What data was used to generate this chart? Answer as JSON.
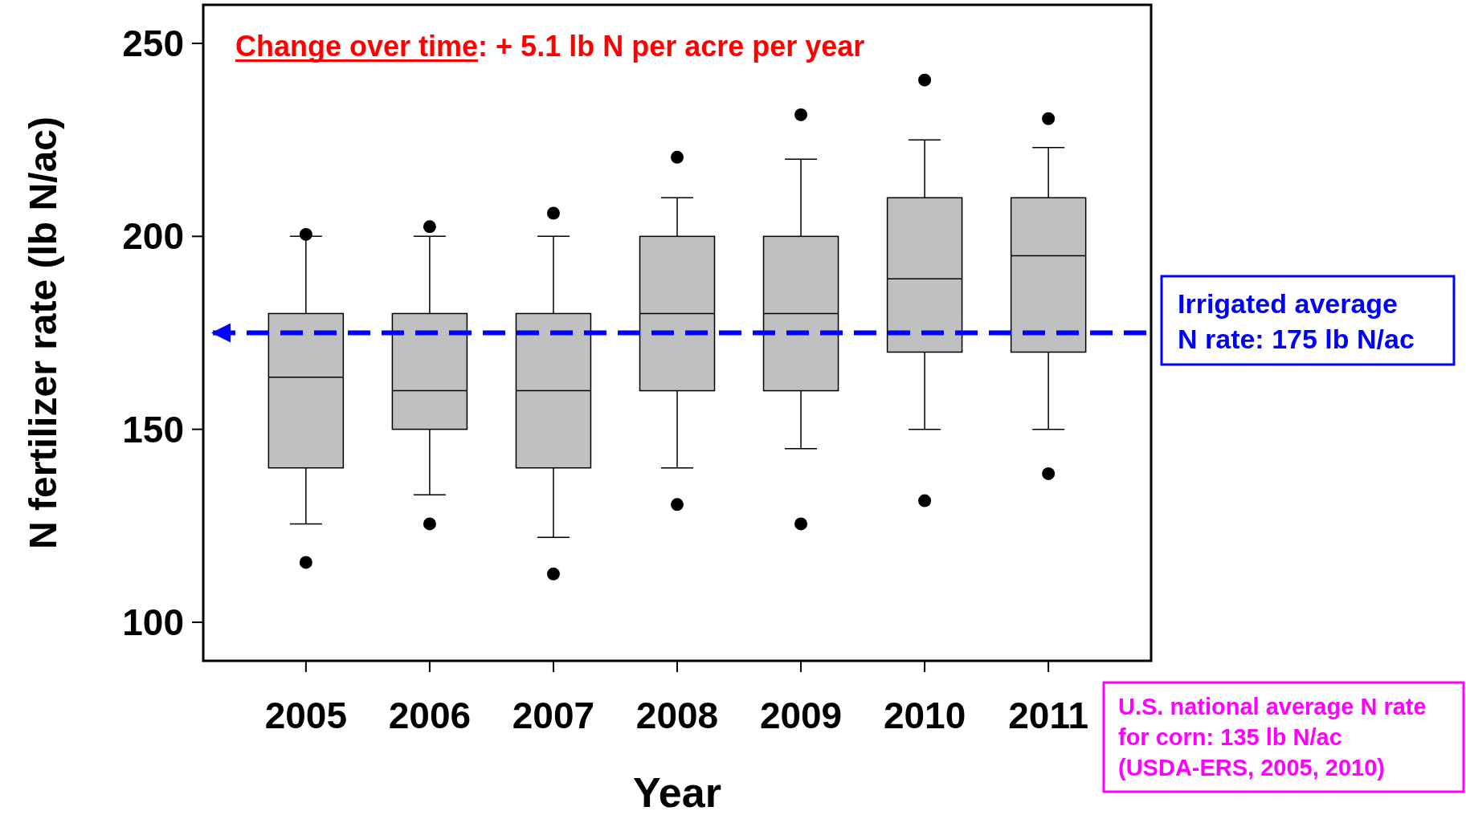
{
  "chart_data": {
    "type": "box",
    "xlabel": "Year",
    "ylabel": "N fertilizer rate (lb N/ac)",
    "categories": [
      "2005",
      "2006",
      "2007",
      "2008",
      "2009",
      "2010",
      "2011"
    ],
    "color": "#c0c0c0",
    "boxes": [
      {
        "low": 125.5,
        "q1": 140,
        "median": 163.5,
        "q3": 180,
        "high": 200,
        "outliers": [
          115.5,
          200.5
        ]
      },
      {
        "low": 133,
        "q1": 150,
        "median": 160,
        "q3": 180,
        "high": 200,
        "outliers": [
          125.5,
          202.5
        ]
      },
      {
        "low": 122,
        "q1": 140,
        "median": 160,
        "q3": 180,
        "high": 200,
        "outliers": [
          112.5,
          206
        ]
      },
      {
        "low": 140,
        "q1": 160,
        "median": 180,
        "q3": 200,
        "high": 210,
        "outliers": [
          130.5,
          220.5
        ]
      },
      {
        "low": 145,
        "q1": 160,
        "median": 180,
        "q3": 200,
        "high": 220,
        "outliers": [
          125.5,
          231.5
        ]
      },
      {
        "low": 150,
        "q1": 170,
        "median": 189,
        "q3": 210,
        "high": 225,
        "outliers": [
          131.5,
          240.5
        ]
      },
      {
        "low": 150,
        "q1": 170,
        "median": 195,
        "q3": 210,
        "high": 223,
        "outliers": [
          138.5,
          230.5
        ]
      }
    ],
    "ylim": [
      90,
      260
    ],
    "yticks": [
      100,
      150,
      200,
      250
    ],
    "grid": false,
    "ref_lines": [
      {
        "axis": "y",
        "value": 175,
        "label": "Irrigated average\nN rate: 175 lb N/ac",
        "color": "#0000ff",
        "line_style": "dashed"
      }
    ],
    "annotations": [
      "Change over time: + 5.1 lb N per acre per year",
      "U.S. national average N rate\nfor corn: 135 lb N/ac\n(USDA-ERS, 2005, 2010)"
    ]
  }
}
